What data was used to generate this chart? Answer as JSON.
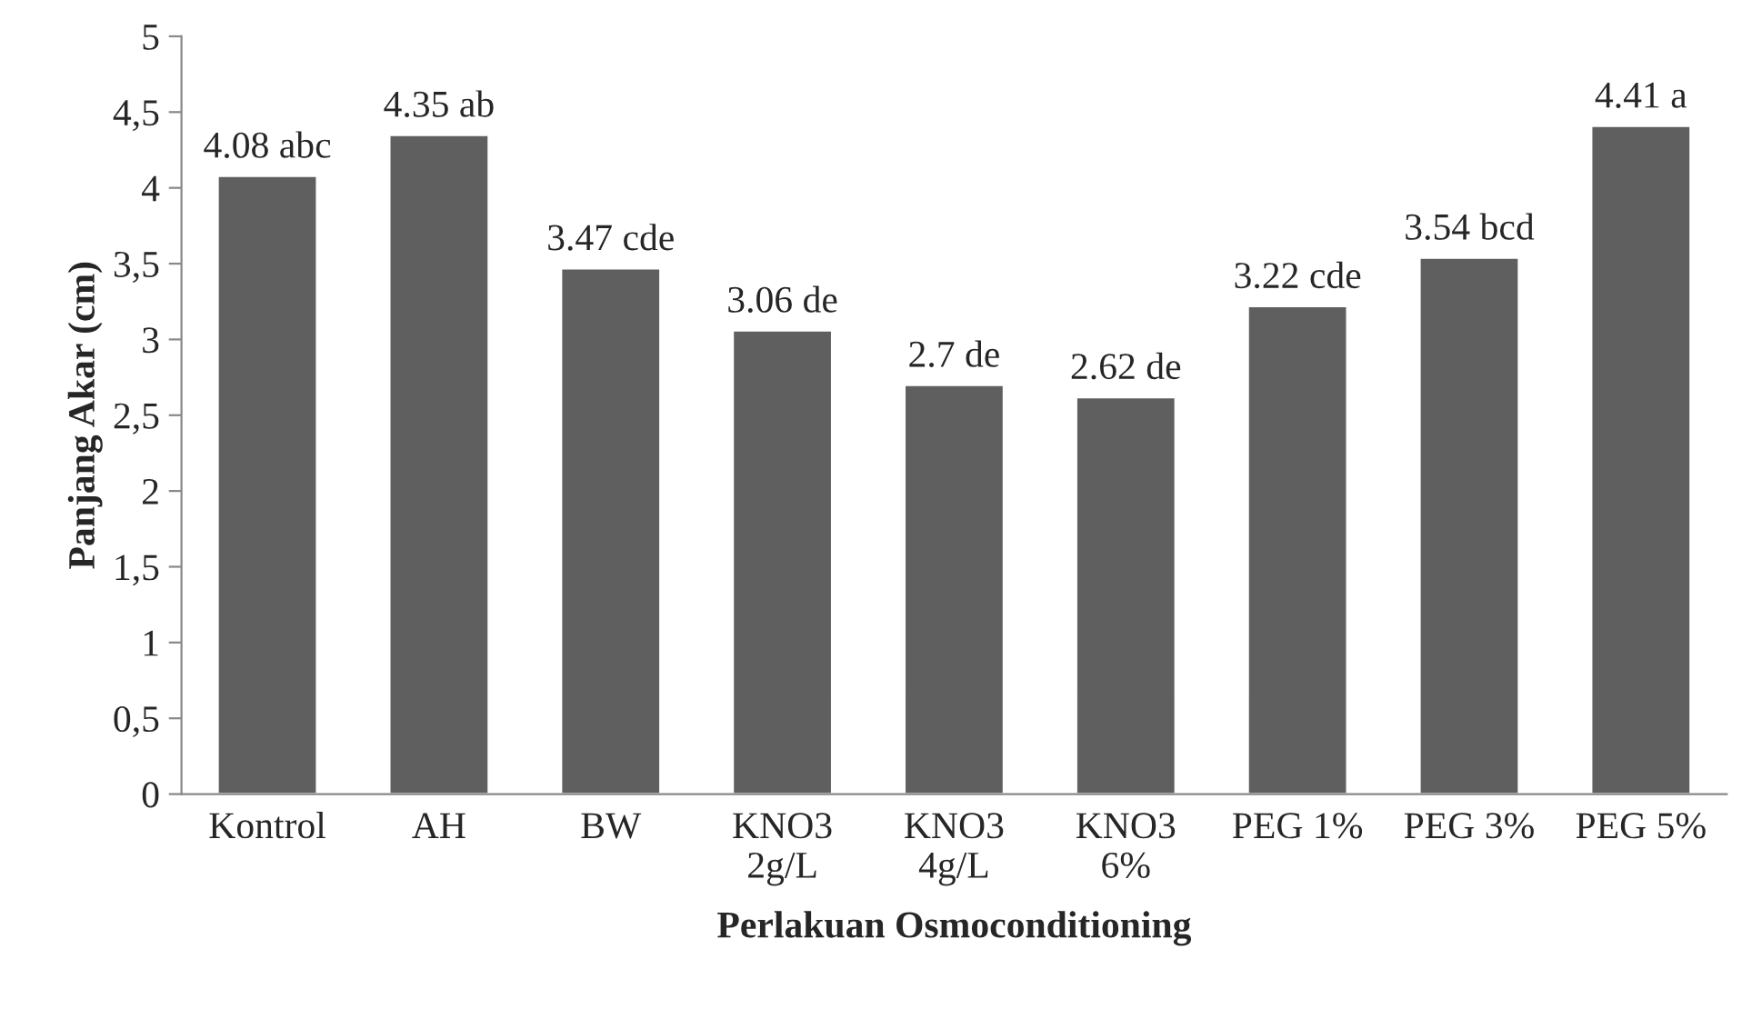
{
  "chart_data": {
    "type": "bar",
    "xlabel": "Perlakuan Osmoconditioning",
    "ylabel": "Panjang Akar (cm)",
    "categories": [
      "Kontrol",
      "AH",
      "BW",
      "KNO3\n2g/L",
      "KNO3\n4g/L",
      "KNO3\n6%",
      "PEG 1%",
      "PEG 3%",
      "PEG 5%"
    ],
    "values": [
      4.08,
      4.35,
      3.47,
      3.06,
      2.7,
      2.62,
      3.22,
      3.54,
      4.41
    ],
    "value_labels": [
      "4.08 abc",
      "4.35 ab",
      "3.47 cde",
      "3.06 de",
      "2.7 de",
      "2.62 de",
      "3.22 cde",
      "3.54 bcd",
      "4.41 a"
    ],
    "color": "#5f5f5f",
    "ylim": [
      0,
      5
    ],
    "yticks": [
      0,
      {
        "value": 0.5,
        "label": "0,5"
      },
      1,
      {
        "value": 1.5,
        "label": "1,5"
      },
      2,
      {
        "value": 2.5,
        "label": "2,5"
      },
      3,
      {
        "value": 3.5,
        "label": "3,5"
      },
      4,
      {
        "value": 4.5,
        "label": "4,5"
      },
      5
    ],
    "grid": false,
    "legend": false
  }
}
